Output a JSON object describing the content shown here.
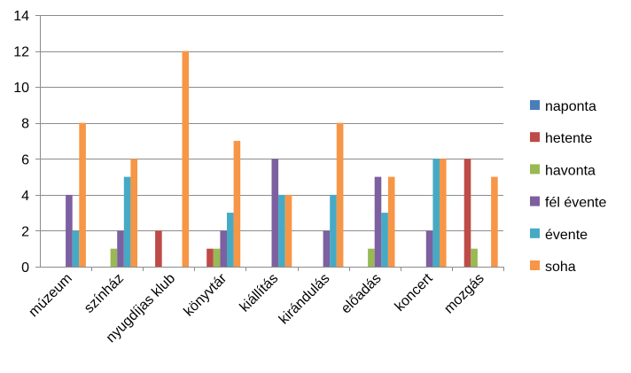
{
  "chart_data": {
    "type": "bar",
    "title": "",
    "xlabel": "",
    "ylabel": "",
    "ylim": [
      0,
      14
    ],
    "yticks": [
      "0",
      "2",
      "4",
      "6",
      "8",
      "10",
      "12",
      "14"
    ],
    "grid": "horizontal",
    "legend_position": "right",
    "categories": [
      "múzeum",
      "színház",
      "nyugdíjas klub",
      "könyvtár",
      "kiállítás",
      "kirándulás",
      "előadás",
      "koncert",
      "mozgás"
    ],
    "series": [
      {
        "name": "naponta",
        "color": "#4A7EBB",
        "values": [
          0,
          0,
          0,
          0,
          0,
          0,
          0,
          0,
          0
        ]
      },
      {
        "name": "hetente",
        "color": "#BE4B48",
        "values": [
          0,
          0,
          2,
          1,
          0,
          0,
          0,
          0,
          6
        ]
      },
      {
        "name": "havonta",
        "color": "#98B954",
        "values": [
          0,
          1,
          0,
          1,
          0,
          0,
          1,
          0,
          1
        ]
      },
      {
        "name": "fél évente",
        "color": "#7D60A0",
        "values": [
          4,
          2,
          0,
          2,
          6,
          2,
          5,
          2,
          0
        ]
      },
      {
        "name": "évente",
        "color": "#46AAC5",
        "values": [
          2,
          5,
          0,
          3,
          4,
          4,
          3,
          6,
          0
        ]
      },
      {
        "name": "soha",
        "color": "#F79646",
        "values": [
          8,
          6,
          12,
          7,
          4,
          8,
          5,
          6,
          5
        ]
      }
    ]
  }
}
